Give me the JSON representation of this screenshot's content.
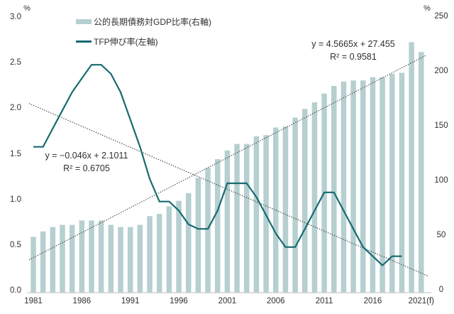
{
  "colors": {
    "bar": "#b6cfd0",
    "line": "#176b70",
    "trend": "#4a4a4a",
    "axis_line": "#c9c9c9",
    "text": "#303030"
  },
  "chart_data": {
    "type": "combo",
    "title": "",
    "categories": [
      1981,
      1982,
      1983,
      1984,
      1985,
      1986,
      1987,
      1988,
      1989,
      1990,
      1991,
      1992,
      1993,
      1994,
      1995,
      1996,
      1997,
      1998,
      1999,
      2000,
      2001,
      2002,
      2003,
      2004,
      2005,
      2006,
      2007,
      2008,
      2009,
      2010,
      2011,
      2012,
      2013,
      2014,
      2015,
      2016,
      2017,
      2018,
      2019,
      2020,
      2021
    ],
    "x_tick_indices": [
      0,
      5,
      10,
      15,
      20,
      25,
      30,
      35,
      40
    ],
    "x_tick_labels": [
      "1981",
      "1986",
      "1991",
      "1996",
      "2001",
      "2006",
      "2011",
      "2016",
      "2021(f)"
    ],
    "series": [
      {
        "name": "公的長期債務対GDP比率(右軸)",
        "type": "bar",
        "axis": "right",
        "values": [
          51,
          56,
          60,
          62,
          62,
          66,
          66,
          66,
          62,
          60,
          60,
          62,
          70,
          72,
          79,
          84,
          91,
          105,
          114,
          122,
          130,
          136,
          136,
          143,
          144,
          151,
          152,
          160,
          168,
          174,
          182,
          189,
          193,
          194,
          194,
          197,
          197,
          200,
          201,
          229,
          220
        ]
      },
      {
        "name": "TFP伸び率(左軸)",
        "type": "line",
        "axis": "left",
        "values": [
          1.6,
          1.6,
          1.8,
          2.0,
          2.2,
          2.35,
          2.5,
          2.5,
          2.4,
          2.2,
          1.9,
          1.6,
          1.25,
          1.0,
          1.0,
          0.9,
          0.75,
          0.7,
          0.7,
          0.9,
          1.2,
          1.2,
          1.2,
          1.05,
          0.85,
          0.65,
          0.5,
          0.5,
          0.7,
          0.9,
          1.1,
          1.1,
          0.9,
          0.7,
          0.5,
          0.4,
          0.3,
          0.4,
          0.4,
          null,
          null
        ]
      }
    ],
    "trendlines": [
      {
        "for": "公的長期債務対GDP比率",
        "equation": "y = 4.5665x + 27.455",
        "r2": "R² = 0.9581",
        "slope": 4.5665,
        "intercept": 27.455,
        "axis": "right"
      },
      {
        "for": "TFP伸び率",
        "equation": "y = −0.046x + 2.1011",
        "r2": "R² = 0.6705",
        "slope": -0.046,
        "intercept": 2.1011,
        "axis": "left"
      }
    ],
    "axes": {
      "left": {
        "unit": "%",
        "min": 0,
        "max": 3,
        "ticks": [
          "3.0",
          "2.5",
          "2.0",
          "1.5",
          "1.0",
          "0.5",
          "0.0"
        ],
        "tick_values": [
          3.0,
          2.5,
          2.0,
          1.5,
          1.0,
          0.5,
          0.0
        ]
      },
      "right": {
        "unit": "%",
        "min": 0,
        "max": 250,
        "ticks": [
          "250",
          "200",
          "150",
          "100",
          "50",
          "0"
        ],
        "tick_values": [
          250,
          200,
          150,
          100,
          50,
          0
        ]
      },
      "grid": false,
      "legend_position": "top-left"
    }
  }
}
